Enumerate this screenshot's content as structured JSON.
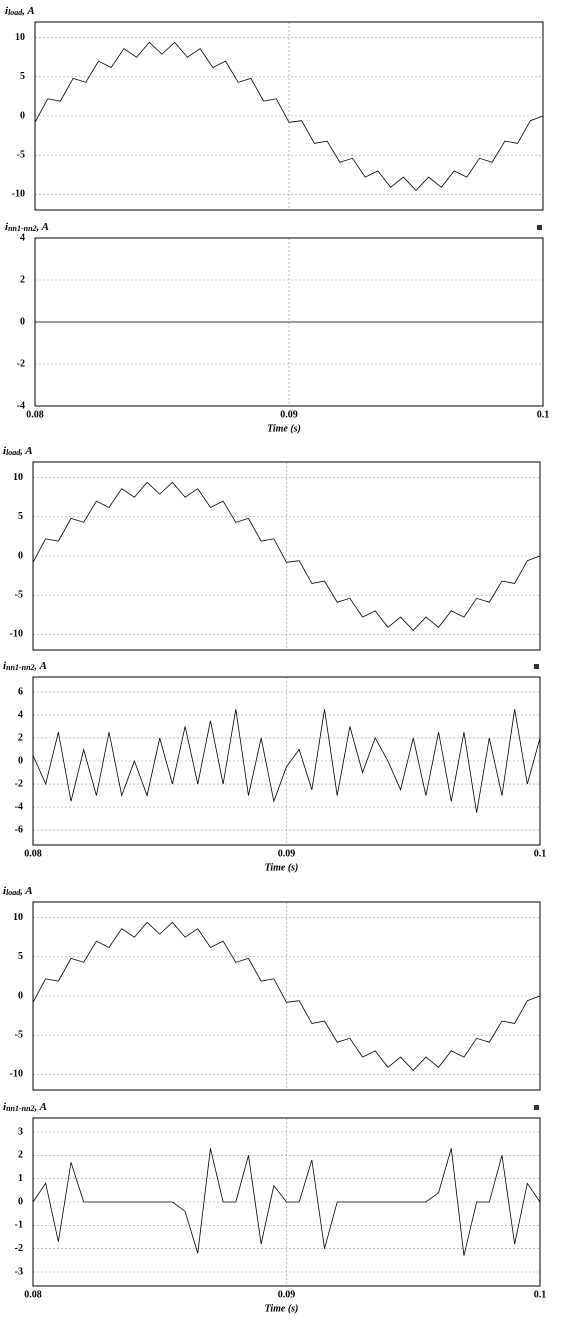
{
  "chart_data": [
    {
      "type": "line",
      "title_symbol": "i",
      "title_subscript": "load",
      "title_unit": ", A",
      "x": [
        0.08,
        0.0805,
        0.081,
        0.0815,
        0.082,
        0.0825,
        0.083,
        0.0835,
        0.084,
        0.0845,
        0.085,
        0.0855,
        0.086,
        0.0865,
        0.087,
        0.0875,
        0.088,
        0.0885,
        0.089,
        0.0895,
        0.09,
        0.0905,
        0.091,
        0.0915,
        0.092,
        0.0925,
        0.093,
        0.0935,
        0.094,
        0.0945,
        0.095,
        0.0955,
        0.096,
        0.0965,
        0.097,
        0.0975,
        0.098,
        0.0985,
        0.099,
        0.0995,
        0.1
      ],
      "series": [
        {
          "color": "#000000",
          "values": [
            -0.8,
            2.2,
            1.9,
            4.8,
            4.3,
            7,
            6.2,
            8.6,
            7.5,
            9.4,
            7.9,
            9.4,
            7.5,
            8.6,
            6.2,
            7,
            4.3,
            4.8,
            1.9,
            2.2,
            -0.8,
            -0.6,
            -3.5,
            -3.2,
            -5.9,
            -5.4,
            -7.8,
            -7,
            -9.1,
            -7.8,
            -9.5,
            -7.8,
            -9.1,
            -7,
            -7.8,
            -5.4,
            -5.9,
            -3.2,
            -3.5,
            -0.6,
            0
          ]
        }
      ],
      "xlim": [
        0.08,
        0.1
      ],
      "xticks": [
        0.09
      ],
      "show_xtick_labels": false,
      "ylim": [
        -12,
        12
      ],
      "yticks": [
        -10,
        -5,
        0,
        5,
        10
      ],
      "grid": true
    },
    {
      "type": "line",
      "title_symbol": "i",
      "title_subscript": "nn1-nn2",
      "title_unit": ", A",
      "x": [
        0.08,
        0.1
      ],
      "series": [
        {
          "color": "#000000",
          "values": [
            0,
            0
          ]
        }
      ],
      "xlim": [
        0.08,
        0.1
      ],
      "xticks": [
        0.08,
        0.09,
        0.1
      ],
      "show_xtick_labels": true,
      "xlabel": "Time (s)",
      "ylim": [
        -4,
        4
      ],
      "yticks": [
        -4,
        -2,
        0,
        2,
        4
      ],
      "grid": true
    },
    {
      "type": "line",
      "title_symbol": "i",
      "title_subscript": "load",
      "title_unit": ", A",
      "x": [
        0.08,
        0.0805,
        0.081,
        0.0815,
        0.082,
        0.0825,
        0.083,
        0.0835,
        0.084,
        0.0845,
        0.085,
        0.0855,
        0.086,
        0.0865,
        0.087,
        0.0875,
        0.088,
        0.0885,
        0.089,
        0.0895,
        0.09,
        0.0905,
        0.091,
        0.0915,
        0.092,
        0.0925,
        0.093,
        0.0935,
        0.094,
        0.0945,
        0.095,
        0.0955,
        0.096,
        0.0965,
        0.097,
        0.0975,
        0.098,
        0.0985,
        0.099,
        0.0995,
        0.1
      ],
      "series": [
        {
          "color": "#000000",
          "values": [
            -0.8,
            2.2,
            1.9,
            4.8,
            4.3,
            7,
            6.2,
            8.6,
            7.5,
            9.4,
            7.9,
            9.4,
            7.5,
            8.6,
            6.2,
            7,
            4.3,
            4.8,
            1.9,
            2.2,
            -0.8,
            -0.6,
            -3.5,
            -3.2,
            -5.9,
            -5.4,
            -7.8,
            -7,
            -9.1,
            -7.8,
            -9.5,
            -7.8,
            -9.1,
            -7,
            -7.8,
            -5.4,
            -5.9,
            -3.2,
            -3.5,
            -0.6,
            0
          ]
        }
      ],
      "xlim": [
        0.08,
        0.1
      ],
      "xticks": [
        0.09
      ],
      "show_xtick_labels": false,
      "ylim": [
        -12,
        12
      ],
      "yticks": [
        -10,
        -5,
        0,
        5,
        10
      ],
      "grid": true
    },
    {
      "type": "line",
      "title_symbol": "i",
      "title_subscript": "nn1-nn2",
      "title_unit": ", A",
      "x": [
        0.08,
        0.0805,
        0.081,
        0.0815,
        0.082,
        0.0825,
        0.083,
        0.0835,
        0.084,
        0.0845,
        0.085,
        0.0855,
        0.086,
        0.0865,
        0.087,
        0.0875,
        0.088,
        0.0885,
        0.089,
        0.0895,
        0.09,
        0.0905,
        0.091,
        0.0915,
        0.092,
        0.0925,
        0.093,
        0.0935,
        0.094,
        0.0945,
        0.095,
        0.0955,
        0.096,
        0.0965,
        0.097,
        0.0975,
        0.098,
        0.0985,
        0.099,
        0.0995,
        0.1
      ],
      "series": [
        {
          "color": "#000000",
          "values": [
            0.5,
            -2,
            2.5,
            -3.5,
            1,
            -3,
            2.5,
            -3,
            0,
            -3,
            2,
            -2,
            3,
            -2,
            3.5,
            -2,
            4.5,
            -3,
            2,
            -3.5,
            -0.5,
            1,
            -2.5,
            4.5,
            -3,
            3,
            -1,
            2,
            0,
            -2.5,
            2,
            -3,
            2.5,
            -3.5,
            2.5,
            -4.5,
            2,
            -3,
            4.5,
            -2,
            2
          ]
        }
      ],
      "xlim": [
        0.08,
        0.1
      ],
      "xticks": [
        0.08,
        0.09,
        0.1
      ],
      "show_xtick_labels": true,
      "xlabel": "Time (s)",
      "ylim": [
        -7.3,
        7.3
      ],
      "yticks": [
        -6,
        -4,
        -2,
        0,
        2,
        4,
        6
      ],
      "grid": true
    },
    {
      "type": "line",
      "title_symbol": "i",
      "title_subscript": "load",
      "title_unit": ", A",
      "x": [
        0.08,
        0.0805,
        0.081,
        0.0815,
        0.082,
        0.0825,
        0.083,
        0.0835,
        0.084,
        0.0845,
        0.085,
        0.0855,
        0.086,
        0.0865,
        0.087,
        0.0875,
        0.088,
        0.0885,
        0.089,
        0.0895,
        0.09,
        0.0905,
        0.091,
        0.0915,
        0.092,
        0.0925,
        0.093,
        0.0935,
        0.094,
        0.0945,
        0.095,
        0.0955,
        0.096,
        0.0965,
        0.097,
        0.0975,
        0.098,
        0.0985,
        0.099,
        0.0995,
        0.1
      ],
      "series": [
        {
          "color": "#000000",
          "values": [
            -0.8,
            2.2,
            1.9,
            4.8,
            4.3,
            7,
            6.2,
            8.6,
            7.5,
            9.4,
            7.9,
            9.4,
            7.5,
            8.6,
            6.2,
            7,
            4.3,
            4.8,
            1.9,
            2.2,
            -0.8,
            -0.6,
            -3.5,
            -3.2,
            -5.9,
            -5.4,
            -7.8,
            -7,
            -9.1,
            -7.8,
            -9.5,
            -7.8,
            -9.1,
            -7,
            -7.8,
            -5.4,
            -5.9,
            -3.2,
            -3.5,
            -0.6,
            0
          ]
        }
      ],
      "xlim": [
        0.08,
        0.1
      ],
      "xticks": [
        0.09
      ],
      "show_xtick_labels": false,
      "ylim": [
        -12,
        12
      ],
      "yticks": [
        -10,
        -5,
        0,
        5,
        10
      ],
      "grid": true
    },
    {
      "type": "line",
      "title_symbol": "i",
      "title_subscript": "nn1-nn2",
      "title_unit": ", A",
      "x": [
        0.08,
        0.0805,
        0.081,
        0.0815,
        0.082,
        0.0825,
        0.083,
        0.0835,
        0.084,
        0.0845,
        0.085,
        0.0855,
        0.086,
        0.0865,
        0.087,
        0.0875,
        0.088,
        0.0885,
        0.089,
        0.0895,
        0.09,
        0.0905,
        0.091,
        0.0915,
        0.092,
        0.0925,
        0.093,
        0.0935,
        0.094,
        0.0945,
        0.095,
        0.0955,
        0.096,
        0.0965,
        0.097,
        0.0975,
        0.098,
        0.0985,
        0.099,
        0.0995,
        0.1
      ],
      "series": [
        {
          "color": "#000000",
          "values": [
            0,
            0.8,
            -1.7,
            1.7,
            0,
            0,
            0,
            0,
            0,
            0,
            0,
            0,
            -0.4,
            -2.2,
            2.3,
            0,
            0,
            2,
            -1.8,
            0.7,
            0,
            0,
            1.8,
            -2,
            0,
            0,
            0,
            0,
            0,
            0,
            0,
            0,
            0.4,
            2.3,
            -2.3,
            0,
            0,
            2,
            -1.8,
            0.8,
            0
          ]
        }
      ],
      "xlim": [
        0.08,
        0.1
      ],
      "xticks": [
        0.08,
        0.09,
        0.1
      ],
      "show_xtick_labels": true,
      "xlabel": "Time (s)",
      "ylim": [
        -3.6,
        3.6
      ],
      "yticks": [
        -3,
        -2,
        -1,
        0,
        1,
        2,
        3
      ],
      "grid": true
    }
  ]
}
